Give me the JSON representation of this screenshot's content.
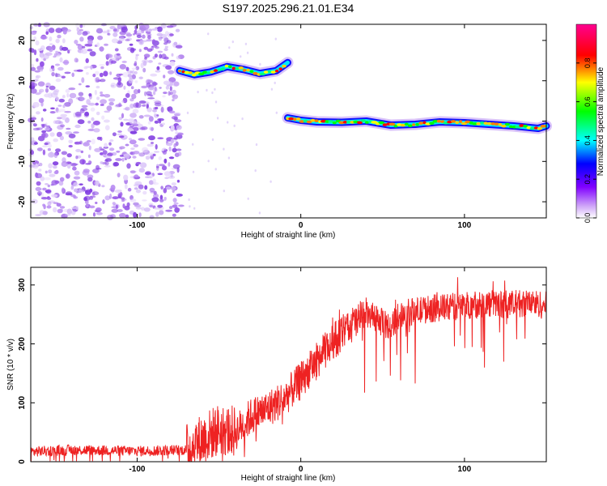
{
  "title": "S197.2025.296.21.01.E34",
  "chart_data": [
    {
      "type": "heatmap",
      "id": "spectrogram",
      "xlabel": "Height of straight line (km)",
      "ylabel": "Frequency (Hz)",
      "xlim": [
        -165,
        150
      ],
      "ylim": [
        -24,
        24
      ],
      "xticks": [
        -100,
        0,
        100
      ],
      "xtick_labels": [
        "-100",
        "0",
        "100"
      ],
      "yticks": [
        -20,
        -10,
        0,
        10,
        20
      ],
      "ytick_labels": [
        "-20",
        "-10",
        "0",
        "10",
        "20"
      ],
      "colorbar": {
        "label": "Normalized spectral amplitude",
        "range": [
          0,
          1
        ],
        "ticks": [
          0.0,
          0.2,
          0.4,
          0.6,
          0.8
        ],
        "tick_labels": [
          "0.0",
          "0.2",
          "0.4",
          "0.6",
          "0.8"
        ],
        "colormap": [
          "#ffffff",
          "#a020f0",
          "#0000ff",
          "#00ffff",
          "#00ff00",
          "#ffff00",
          "#ff8000",
          "#ff0000",
          "#ff00a0"
        ]
      },
      "noise_region_x": [
        -165,
        -73
      ],
      "tracks": [
        {
          "x": [
            -74,
            -65,
            -55,
            -45,
            -35,
            -25,
            -15,
            -8
          ],
          "y": [
            12.5,
            11.5,
            12.2,
            13.5,
            12.8,
            11.8,
            12.5,
            14.5
          ]
        },
        {
          "x": [
            -8,
            0,
            10,
            25,
            40,
            55,
            70,
            85,
            100,
            115,
            130,
            145,
            150
          ],
          "y": [
            0.8,
            0.2,
            -0.2,
            -0.3,
            0.0,
            -1.0,
            -0.8,
            -0.2,
            -0.4,
            -0.8,
            -1.2,
            -1.8,
            -1.2
          ]
        }
      ]
    },
    {
      "type": "line",
      "id": "snr",
      "xlabel": "Height of straight line (km)",
      "ylabel": "SNR (10 * v/v)",
      "xlim": [
        -165,
        150
      ],
      "ylim": [
        0,
        330
      ],
      "xticks": [
        -100,
        0,
        100
      ],
      "xtick_labels": [
        "-100",
        "0",
        "100"
      ],
      "yticks": [
        0,
        100,
        200,
        300
      ],
      "ytick_labels": [
        "0",
        "100",
        "200",
        "300"
      ],
      "line_color": "#ee2222",
      "trend_x": [
        -165,
        -140,
        -100,
        -70,
        -60,
        -50,
        -40,
        -30,
        -20,
        -10,
        0,
        10,
        20,
        30,
        40,
        45,
        50,
        55,
        60,
        70,
        80,
        90,
        100,
        110,
        120,
        130,
        140,
        150
      ],
      "trend_y": [
        17,
        20,
        18,
        20,
        38,
        55,
        50,
        78,
        90,
        108,
        138,
        172,
        205,
        230,
        248,
        246,
        235,
        228,
        250,
        255,
        260,
        262,
        265,
        268,
        268,
        267,
        270,
        265
      ]
    }
  ]
}
